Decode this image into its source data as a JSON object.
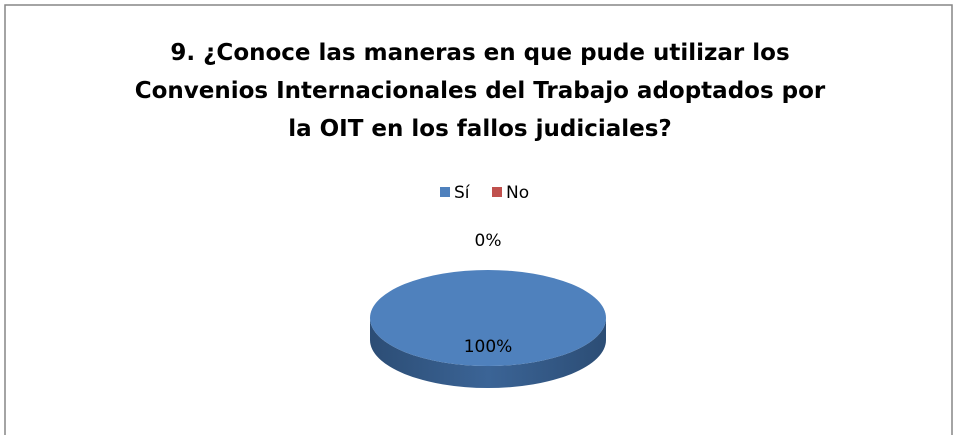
{
  "chart_data": {
    "type": "pie3d",
    "title": "9.   ¿Conoce las maneras en que pude utilizar los Convenios Internacionales del Trabajo adoptados por la OIT en los fallos judiciales?",
    "categories": [
      "Sí",
      "No"
    ],
    "values": [
      100,
      0
    ],
    "value_labels": [
      "100%",
      "0%"
    ],
    "colors": [
      "#4f81bd",
      "#c0504d"
    ],
    "legend": "top"
  }
}
